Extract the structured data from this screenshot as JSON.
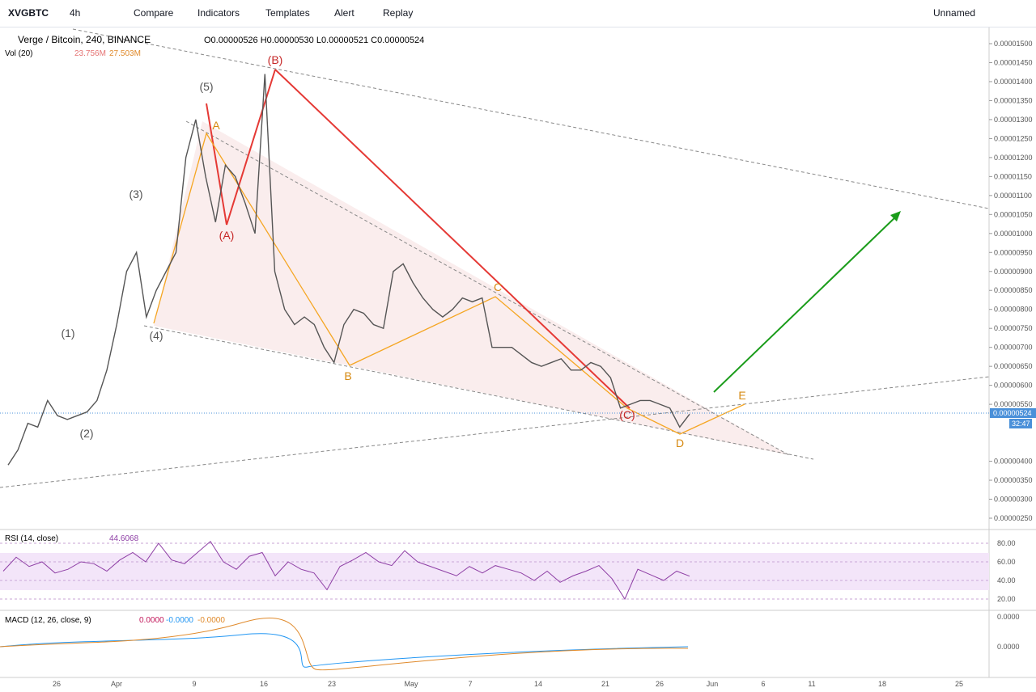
{
  "toolbar": {
    "symbol": "XVGBTC",
    "interval": "4h",
    "compare": "Compare",
    "indicators": "Indicators",
    "templates": "Templates",
    "alert": "Alert",
    "replay": "Replay",
    "layout": "Unnamed"
  },
  "legend": {
    "title": "Verge / Bitcoin, 240, BINANCE",
    "ohlc": "O0.00000526 H0.00000530 L0.00000521 C0.00000524",
    "volume": "Vol (20)",
    "vol1": "23.756M",
    "vol2": "27.503M",
    "rsi": "RSI (14, close)",
    "rsi_value": "44.6068",
    "macd": "MACD (12, 26, close, 9)",
    "macd1": "0.0000",
    "macd2": "-0.0000",
    "macd3": "-0.0000"
  },
  "price_label": "0.00000524",
  "countdown": "32:47",
  "x_labels": [
    "26",
    "Apr",
    "9",
    "16",
    "23",
    "May",
    "7",
    "14",
    "21",
    "26",
    "Jun",
    "6",
    "11",
    "18",
    "25"
  ],
  "waves": [
    "(1)",
    "(2)",
    "(3)",
    "(4)",
    "(5)",
    "(A)",
    "(B)",
    "(C)",
    "A",
    "B",
    "C",
    "D",
    "E"
  ],
  "macd_ticks": [
    "0.0000",
    "0.0000"
  ],
  "chart_data": {
    "type": "line",
    "color": "#555555",
    "values": [
      3.9e-06,
      4.3e-06,
      5e-06,
      4.9e-06,
      5.6e-06,
      5.2e-06,
      5.1e-06,
      5.2e-06,
      5.3e-06,
      5.6e-06,
      6.4e-06,
      7.6e-06,
      9e-06,
      9.5e-06,
      7.8e-06,
      8.5e-06,
      9e-06,
      9.5e-06,
      1.2e-05,
      1.3e-05,
      1.15e-05,
      1.03e-05,
      1.18e-05,
      1.15e-05,
      1.08e-05,
      1e-05,
      1.42e-05,
      9e-06,
      8e-06,
      7.6e-06,
      7.8e-06,
      7.6e-06,
      7e-06,
      6.6e-06,
      7.6e-06,
      8e-06,
      7.9e-06,
      7.6e-06,
      7.5e-06,
      9e-06,
      9.2e-06,
      8.7e-06,
      8.3e-06,
      8e-06,
      7.8e-06,
      8e-06,
      8.3e-06,
      8.2e-06,
      8.3e-06,
      7e-06,
      7e-06,
      7e-06,
      6.8e-06,
      6.6e-06,
      6.5e-06,
      6.6e-06,
      6.7e-06,
      6.4e-06,
      6.4e-06,
      6.6e-06,
      6.5e-06,
      6.2e-06,
      5.4e-06,
      5.5e-06,
      5.6e-06,
      5.6e-06,
      5.5e-06,
      5.4e-06,
      4.9e-06,
      5.24e-06
    ],
    "ylim": [
      2.3e-06,
      1.55e-05
    ],
    "yticks": [
      {
        "value": 1.5e-05,
        "label": "0.00001500"
      },
      {
        "value": 1.45e-05,
        "label": "0.00001450"
      },
      {
        "value": 1.4e-05,
        "label": "0.00001400"
      },
      {
        "value": 1.35e-05,
        "label": "0.00001350"
      },
      {
        "value": 1.3e-05,
        "label": "0.00001300"
      },
      {
        "value": 1.25e-05,
        "label": "0.00001250"
      },
      {
        "value": 1.2e-05,
        "label": "0.00001200"
      },
      {
        "value": 1.15e-05,
        "label": "0.00001150"
      },
      {
        "value": 1.1e-05,
        "label": "0.00001100"
      },
      {
        "value": 1.05e-05,
        "label": "0.00001050"
      },
      {
        "value": 1e-05,
        "label": "0.00001000"
      },
      {
        "value": 9.5e-06,
        "label": "0.00000950"
      },
      {
        "value": 9e-06,
        "label": "0.00000900"
      },
      {
        "value": 8.5e-06,
        "label": "0.00000850"
      },
      {
        "value": 8e-06,
        "label": "0.00000800"
      },
      {
        "value": 7.5e-06,
        "label": "0.00000750"
      },
      {
        "value": 7e-06,
        "label": "0.00000700"
      },
      {
        "value": 6.5e-06,
        "label": "0.00000650"
      },
      {
        "value": 6e-06,
        "label": "0.00000600"
      },
      {
        "value": 5.5e-06,
        "label": "0.00000550"
      },
      {
        "value": 4e-06,
        "label": "0.00000400"
      },
      {
        "value": 3.5e-06,
        "label": "0.00000350"
      },
      {
        "value": 3e-06,
        "label": "0.00000300"
      },
      {
        "value": 2.5e-06,
        "label": "0.00000250"
      }
    ],
    "rsi": {
      "color": "#8e3fa5",
      "values": [
        50,
        65,
        55,
        60,
        48,
        52,
        60,
        58,
        50,
        62,
        70,
        60,
        80,
        62,
        58,
        70,
        82,
        60,
        52,
        66,
        70,
        45,
        60,
        52,
        48,
        30,
        55,
        62,
        70,
        60,
        56,
        72,
        60,
        55,
        50,
        45,
        55,
        48,
        56,
        52,
        48,
        40,
        50,
        38,
        45,
        50,
        56,
        42,
        20,
        52,
        46,
        40,
        50,
        44.6
      ],
      "ylim": [
        10,
        90
      ],
      "yticks": [
        {
          "value": 80,
          "label": "80.00"
        },
        {
          "value": 60,
          "label": "60.00"
        },
        {
          "value": 40,
          "label": "40.00"
        },
        {
          "value": 20,
          "label": "20.00"
        }
      ]
    }
  }
}
